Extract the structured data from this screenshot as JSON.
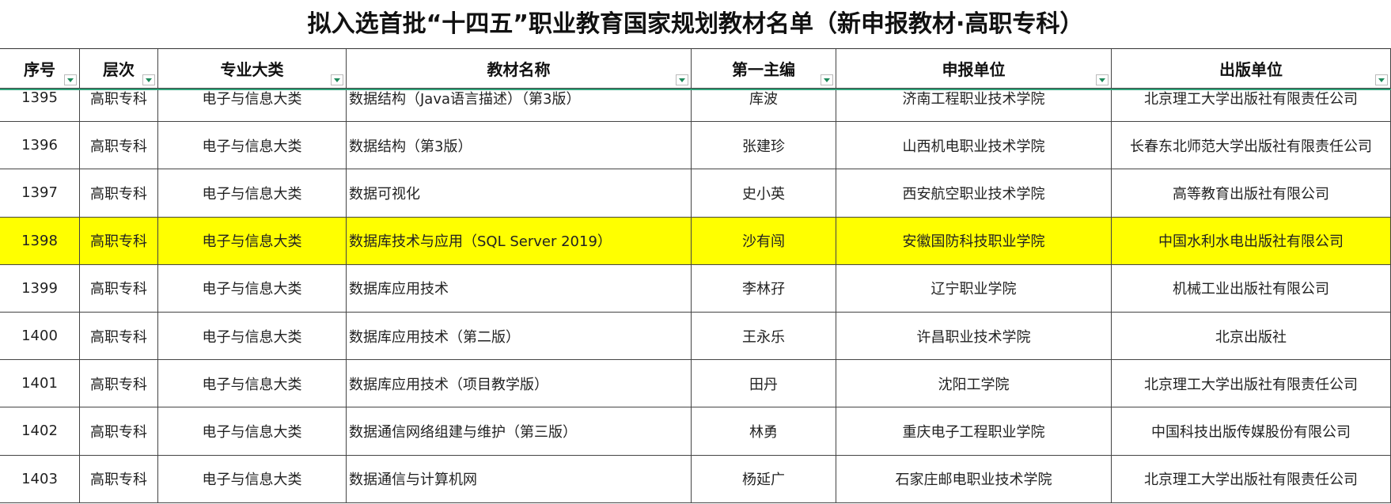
{
  "title": "拟入选首批“十四五”职业教育国家规划教材名单（新申报教材·高职专科）",
  "table": {
    "headers": [
      "序号",
      "层次",
      "专业大类",
      "教材名称",
      "第一主编",
      "申报单位",
      "出版单位"
    ],
    "rows": [
      {
        "cells": [
          "1395",
          "高职专科",
          "电子与信息大类",
          "数据结构（Java语言描述）（第3版）",
          "库波",
          "济南工程职业技术学院",
          "北京理工大学出版社有限责任公司"
        ]
      },
      {
        "cells": [
          "1396",
          "高职专科",
          "电子与信息大类",
          "数据结构（第3版）",
          "张建珍",
          "山西机电职业技术学院",
          "长春东北师范大学出版社有限责任公司"
        ]
      },
      {
        "cells": [
          "1397",
          "高职专科",
          "电子与信息大类",
          "数据可视化",
          "史小英",
          "西安航空职业技术学院",
          "高等教育出版社有限公司"
        ]
      },
      {
        "cells": [
          "1398",
          "高职专科",
          "电子与信息大类",
          "数据库技术与应用（SQL Server 2019）",
          "沙有闯",
          "安徽国防科技职业学院",
          "中国水利水电出版社有限公司"
        ],
        "color": "#ffff00"
      },
      {
        "cells": [
          "1399",
          "高职专科",
          "电子与信息大类",
          "数据库应用技术",
          "李林孖",
          "辽宁职业学院",
          "机械工业出版社有限公司"
        ]
      },
      {
        "cells": [
          "1400",
          "高职专科",
          "电子与信息大类",
          "数据库应用技术（第二版）",
          "王永乐",
          "许昌职业技术学院",
          "北京出版社"
        ]
      },
      {
        "cells": [
          "1401",
          "高职专科",
          "电子与信息大类",
          "数据库应用技术（项目教学版）",
          "田丹",
          "沈阳工学院",
          "北京理工大学出版社有限责任公司"
        ]
      },
      {
        "cells": [
          "1402",
          "高职专科",
          "电子与信息大类",
          "数据通信网络组建与维护（第三版）",
          "林勇",
          "重庆电子工程职业学院",
          "中国科技出版传媒股份有限公司"
        ]
      },
      {
        "cells": [
          "1403",
          "高职专科",
          "电子与信息大类",
          "数据通信与计算机网",
          "杨延广",
          "石家庄邮电职业技术学院",
          "北京理工大学出版社有限责任公司"
        ]
      }
    ]
  }
}
